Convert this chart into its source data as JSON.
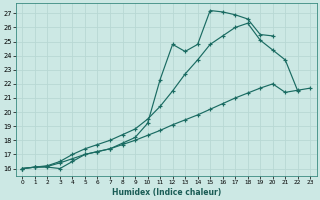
{
  "xlabel": "Humidex (Indice chaleur)",
  "bg_color": "#cce8e4",
  "grid_color": "#b8d8d4",
  "line_color": "#1a6b62",
  "x_ticks": [
    0,
    1,
    2,
    3,
    4,
    5,
    6,
    7,
    8,
    9,
    10,
    11,
    12,
    13,
    14,
    15,
    16,
    17,
    18,
    19,
    20,
    21,
    22,
    23
  ],
  "y_ticks": [
    16,
    17,
    18,
    19,
    20,
    21,
    22,
    23,
    24,
    25,
    26,
    27
  ],
  "xlim": [
    -0.5,
    23.5
  ],
  "ylim": [
    15.5,
    27.7
  ],
  "line1_x": [
    0,
    1,
    2,
    3,
    4,
    5,
    6,
    7,
    8,
    9,
    10,
    11,
    12,
    13,
    14,
    15,
    16,
    17,
    18,
    19,
    20
  ],
  "line1_y": [
    16.0,
    16.1,
    16.1,
    16.0,
    16.5,
    17.0,
    17.2,
    17.4,
    17.8,
    18.2,
    19.2,
    22.3,
    24.8,
    24.3,
    24.8,
    27.2,
    27.1,
    26.9,
    26.6,
    25.5,
    25.4
  ],
  "line2_x": [
    0,
    1,
    2,
    3,
    4,
    5,
    6,
    7,
    8,
    9,
    10,
    11,
    12,
    13,
    14,
    15,
    16,
    17,
    18,
    19,
    20,
    21,
    22
  ],
  "line2_y": [
    16.0,
    16.1,
    16.2,
    16.5,
    17.0,
    17.4,
    17.7,
    18.0,
    18.4,
    18.8,
    19.5,
    20.4,
    21.5,
    22.7,
    23.7,
    24.8,
    25.4,
    26.0,
    26.3,
    25.1,
    24.4,
    23.7,
    21.5
  ],
  "line3_x": [
    0,
    1,
    2,
    3,
    4,
    5,
    6,
    7,
    8,
    9,
    10,
    11,
    12,
    13,
    14,
    15,
    16,
    17,
    18,
    19,
    20,
    21,
    22,
    23
  ],
  "line3_y": [
    16.0,
    16.1,
    16.15,
    16.4,
    16.7,
    17.0,
    17.2,
    17.4,
    17.7,
    18.0,
    18.35,
    18.7,
    19.1,
    19.45,
    19.8,
    20.2,
    20.6,
    21.0,
    21.35,
    21.7,
    22.0,
    21.4,
    21.55,
    21.7
  ]
}
